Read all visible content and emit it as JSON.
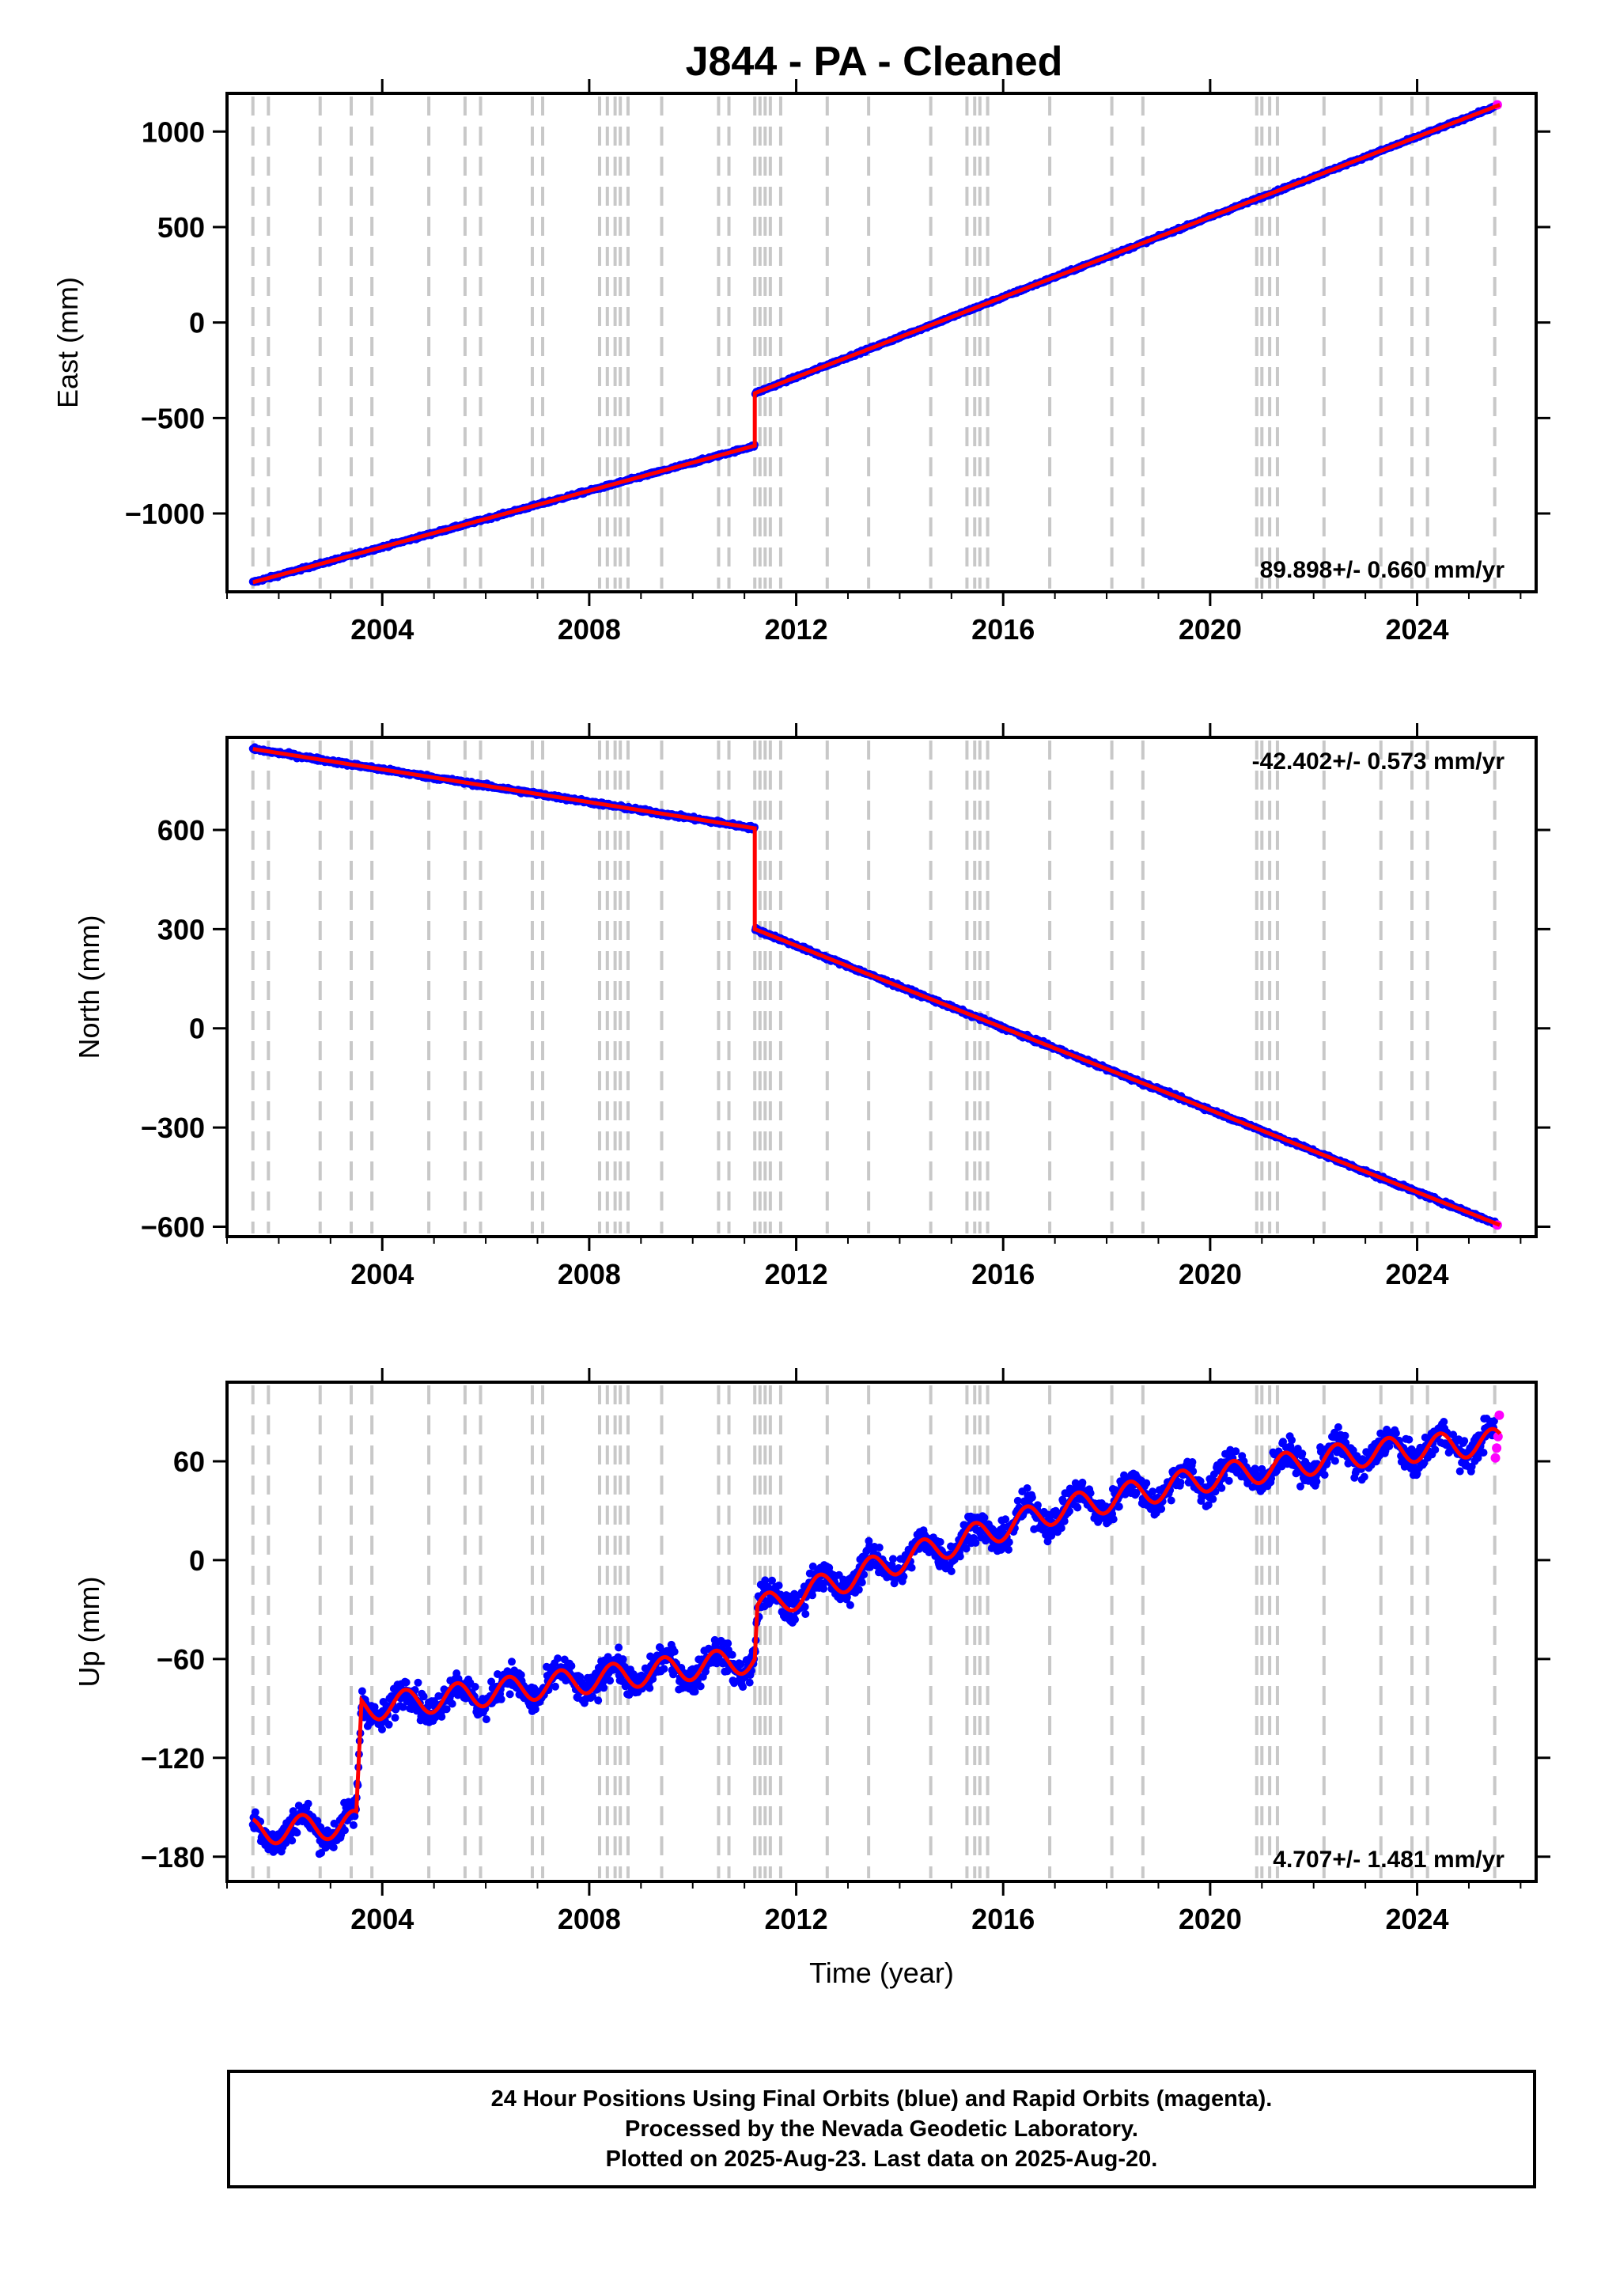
{
  "figure": {
    "title": "J844  - PA - Cleaned",
    "footer": [
      "24 Hour Positions Using Final Orbits (blue) and Rapid Orbits (magenta).",
      "Processed by the Nevada Geodetic Laboratory.",
      "Plotted on 2025-Aug-23. Last data on 2025-Aug-20."
    ],
    "colors": {
      "final_orbits": "#0000ff",
      "rapid_orbits": "#ff00ff",
      "model_fit": "#ff0000",
      "event_lines": "#c8c8c8",
      "frame": "#000000"
    }
  },
  "chart_data": [
    {
      "type": "scatter",
      "component": "East",
      "ylabel": "East (mm)",
      "xlabel": "",
      "xlim": [
        2001.0,
        2026.3
      ],
      "ylim": [
        -1410,
        1200
      ],
      "xticks": [
        2004,
        2008,
        2012,
        2016,
        2020,
        2024
      ],
      "yticks": [
        -1000,
        -500,
        0,
        500,
        1000
      ],
      "ytick_labels": [
        "−1000",
        "−500",
        "0",
        "500",
        "1000"
      ],
      "rate_label": "89.898+/- 0.660 mm/yr",
      "rate_position": "bottom-right",
      "trend": {
        "start": [
          2001.5,
          -1360
        ],
        "offset_event": 2011.2,
        "pre_event": [
          2011.2,
          -645
        ],
        "post_event": [
          2011.2,
          -370
        ],
        "end": [
          2025.6,
          1140
        ]
      },
      "series": [
        {
          "name": "Final Orbits",
          "color": "#0000ff",
          "x_range": [
            2001.5,
            2025.5
          ]
        },
        {
          "name": "Rapid Orbits",
          "color": "#ff00ff",
          "x_range": [
            2025.5,
            2025.6
          ],
          "values": [
            1140
          ]
        }
      ]
    },
    {
      "type": "scatter",
      "component": "North",
      "ylabel": "North (mm)",
      "xlabel": "",
      "xlim": [
        2001.0,
        2026.3
      ],
      "ylim": [
        -630,
        880
      ],
      "xticks": [
        2004,
        2008,
        2012,
        2016,
        2020,
        2024
      ],
      "yticks": [
        -600,
        -300,
        0,
        300,
        600
      ],
      "ytick_labels": [
        "−600",
        "−300",
        "0",
        "300",
        "600"
      ],
      "rate_label": "-42.402+/- 0.573 mm/yr",
      "rate_position": "top-right",
      "trend": {
        "start": [
          2001.5,
          845
        ],
        "offset_event": 2011.2,
        "pre_event": [
          2011.2,
          605
        ],
        "post_event": [
          2011.2,
          300
        ],
        "end": [
          2025.6,
          -595
        ]
      },
      "series": [
        {
          "name": "Final Orbits",
          "color": "#0000ff",
          "x_range": [
            2001.5,
            2025.5
          ]
        },
        {
          "name": "Rapid Orbits",
          "color": "#ff00ff",
          "x_range": [
            2025.5,
            2025.6
          ],
          "values": [
            -595
          ]
        }
      ]
    },
    {
      "type": "scatter",
      "component": "Up",
      "ylabel": "Up (mm)",
      "xlabel": "Time (year)",
      "xlim": [
        2001.0,
        2026.3
      ],
      "ylim": [
        -195,
        108
      ],
      "xticks": [
        2004,
        2008,
        2012,
        2016,
        2020,
        2024
      ],
      "yticks": [
        -180,
        -120,
        -60,
        0,
        60
      ],
      "ytick_labels": [
        "−180",
        "−120",
        "−60",
        "0",
        "60"
      ],
      "rate_label": "4.707+/- 1.481 mm/yr",
      "rate_position": "bottom-right",
      "model_knots": [
        [
          2001.5,
          -165
        ],
        [
          2003.5,
          -160
        ],
        [
          2003.6,
          -90
        ],
        [
          2011.2,
          -60
        ],
        [
          2011.25,
          -30
        ],
        [
          2014,
          0
        ],
        [
          2017,
          30
        ],
        [
          2020,
          50
        ],
        [
          2023,
          65
        ],
        [
          2025.6,
          72
        ]
      ],
      "seasonal_amplitude_mm": 8,
      "series": [
        {
          "name": "Final Orbits",
          "color": "#0000ff",
          "x_range": [
            2001.5,
            2025.5
          ]
        },
        {
          "name": "Rapid Orbits",
          "color": "#ff00ff",
          "x_range": [
            2025.5,
            2025.6
          ],
          "values": [
            62,
            68,
            75,
            88
          ]
        }
      ]
    }
  ],
  "event_lines": [
    2001.5,
    2001.8,
    2002.8,
    2003.4,
    2003.8,
    2004.9,
    2005.6,
    2005.9,
    2006.9,
    2007.1,
    2008.2,
    2008.35,
    2008.5,
    2008.6,
    2008.75,
    2009.4,
    2010.5,
    2010.7,
    2011.2,
    2011.3,
    2011.4,
    2011.5,
    2011.7,
    2012.6,
    2013.4,
    2014.6,
    2015.3,
    2015.45,
    2015.55,
    2015.7,
    2016.9,
    2018.1,
    2018.7,
    2020.9,
    2021.0,
    2021.15,
    2021.3,
    2022.2,
    2023.3,
    2023.9,
    2024.2,
    2025.5
  ]
}
